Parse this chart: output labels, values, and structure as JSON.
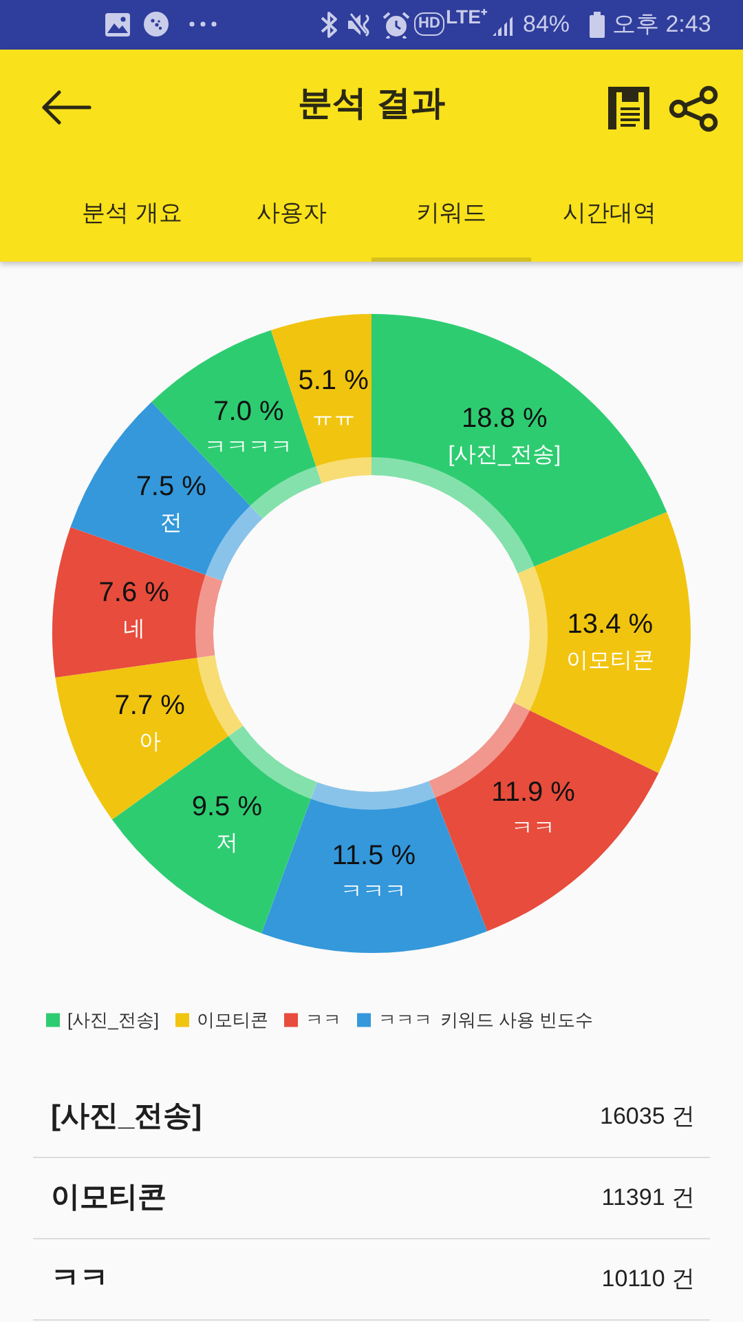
{
  "chart_data": {
    "type": "donut",
    "title": "분석 결과",
    "categories": [
      "[사진_전송]",
      "이모티콘",
      "ㅋㅋ",
      "ㅋㅋㅋ",
      "저",
      "아",
      "네",
      "전",
      "ㅋㅋㅋㅋ",
      "ㅠㅠ"
    ],
    "values": [
      18.8,
      13.4,
      11.9,
      11.5,
      9.5,
      7.7,
      7.6,
      7.5,
      7.0,
      5.1
    ],
    "value_labels": [
      "18.8 %",
      "13.4 %",
      "11.9 %",
      "11.5 %",
      "9.5 %",
      "7.7 %",
      "7.6 %",
      "7.5 %",
      "7.0 %",
      "5.1 %"
    ],
    "colors": [
      "#2ecc71",
      "#f1c40f",
      "#e74c3c",
      "#3498db",
      "#2ecc71",
      "#f1c40f",
      "#e74c3c",
      "#3498db",
      "#2ecc71",
      "#f1c40f"
    ],
    "legend": "bottom left",
    "legend_title": "키워드 사용 빈도수",
    "annotations": [
      "HD",
      "LTE⁺",
      "84%",
      "오후 2:43",
      "분석 개요",
      "사용자",
      "키워드",
      "시간대역",
      "16035 건",
      "11391 건",
      "10110 건"
    ]
  }
}
